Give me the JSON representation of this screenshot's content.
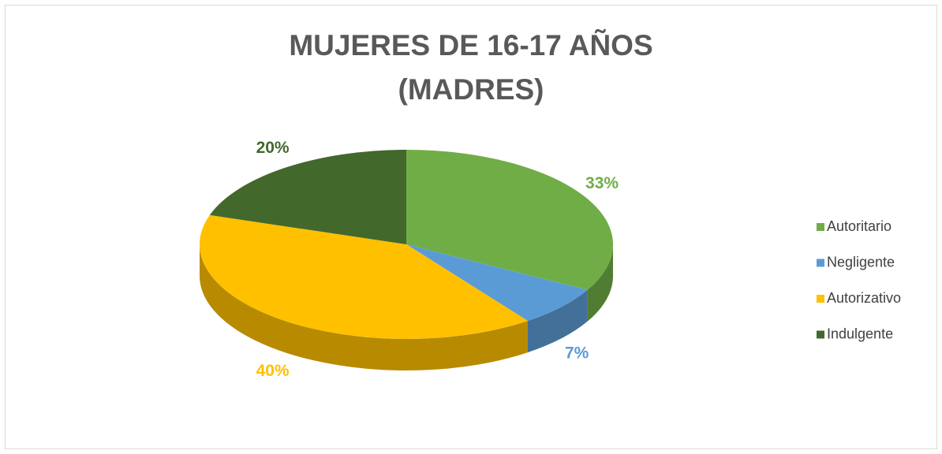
{
  "chart_data": {
    "type": "pie",
    "title": "MUJERES DE 16-17 AÑOS (MADRES)",
    "categories": [
      "Autoritario",
      "Negligente",
      "Autorizativo",
      "Indulgente"
    ],
    "values": [
      33,
      7,
      40,
      20
    ],
    "value_labels": [
      "33%",
      "7%",
      "40%",
      "20%"
    ],
    "colors": [
      "#70ad47",
      "#5b9bd5",
      "#ffc000",
      "#43682b"
    ],
    "legend": "right"
  }
}
